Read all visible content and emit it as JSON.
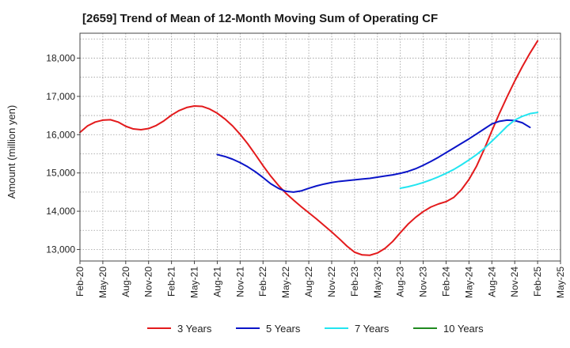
{
  "chart_data": {
    "type": "line",
    "title": "[2659]  Trend of Mean of 12-Month Moving Sum of Operating CF",
    "xlabel": "",
    "ylabel": "Amount (million yen)",
    "ylim": [
      12700,
      18650
    ],
    "yticks": [
      13000,
      14000,
      15000,
      16000,
      17000,
      18000
    ],
    "ytick_labels": [
      "13,000",
      "14,000",
      "15,000",
      "16,000",
      "17,000",
      "18,000"
    ],
    "xtick_labels": [
      "Feb-20",
      "May-20",
      "Aug-20",
      "Nov-20",
      "Feb-21",
      "May-21",
      "Aug-21",
      "Nov-21",
      "Feb-22",
      "May-22",
      "Aug-22",
      "Nov-22",
      "Feb-23",
      "May-23",
      "Aug-23",
      "Nov-23",
      "Feb-24",
      "May-24",
      "Aug-24",
      "Nov-24",
      "Feb-25",
      "May-25"
    ],
    "x_unit": "months since Feb-20",
    "x_range": [
      0,
      63
    ],
    "grid": true,
    "legend_position": "bottom",
    "series": [
      {
        "name": "3 Years",
        "color": "#e31a1c",
        "x": [
          0,
          1,
          2,
          3,
          4,
          5,
          6,
          7,
          8,
          9,
          10,
          11,
          12,
          13,
          14,
          15,
          16,
          17,
          18,
          19,
          20,
          21,
          22,
          23,
          24,
          25,
          26,
          27,
          28,
          29,
          30,
          31,
          32,
          33,
          34,
          35,
          36,
          37,
          38,
          39,
          40,
          41,
          42,
          43,
          44,
          45,
          46,
          47,
          48,
          49,
          50,
          51,
          52,
          53,
          54,
          55,
          56,
          57,
          58,
          59,
          60,
          61,
          62,
          63
        ],
        "values": [
          16060,
          16230,
          16330,
          16380,
          16390,
          16330,
          16220,
          16150,
          16130,
          16160,
          16240,
          16360,
          16510,
          16630,
          16710,
          16750,
          16740,
          16670,
          16560,
          16410,
          16230,
          16010,
          15760,
          15480,
          15190,
          14920,
          14680,
          14470,
          14290,
          14120,
          13960,
          13800,
          13630,
          13460,
          13280,
          13090,
          12930,
          12860,
          12850,
          12910,
          13030,
          13210,
          13440,
          13660,
          13840,
          13990,
          14110,
          14190,
          14250,
          14360,
          14560,
          14830,
          15180,
          15620,
          16100,
          16560,
          16990,
          17400,
          17780,
          18130,
          18450,
          null,
          null,
          null
        ]
      },
      {
        "name": "5 Years",
        "color": "#0a14c8",
        "x": [
          0,
          1,
          2,
          3,
          4,
          5,
          6,
          7,
          8,
          9,
          10,
          11,
          12,
          13,
          14,
          15,
          16,
          17,
          18,
          19,
          20,
          21,
          22,
          23,
          24,
          25,
          26,
          27,
          28,
          29,
          30,
          31,
          32,
          33,
          34,
          35,
          36,
          37,
          38,
          39,
          40,
          41,
          42,
          43,
          44,
          45,
          46,
          47,
          48,
          49,
          50,
          51,
          52,
          53,
          54,
          55,
          56,
          57,
          58,
          59,
          60,
          61,
          62,
          63
        ],
        "values": [
          null,
          null,
          null,
          null,
          null,
          null,
          null,
          null,
          null,
          null,
          null,
          null,
          null,
          null,
          null,
          null,
          null,
          null,
          15480,
          15430,
          15360,
          15270,
          15160,
          15030,
          14880,
          14720,
          14600,
          14520,
          14500,
          14530,
          14600,
          14660,
          14710,
          14750,
          14780,
          14800,
          14820,
          14840,
          14860,
          14890,
          14920,
          14950,
          14990,
          15040,
          15110,
          15200,
          15300,
          15410,
          15530,
          15650,
          15770,
          15890,
          16020,
          16150,
          16280,
          16350,
          16380,
          16370,
          16310,
          16190,
          null,
          null,
          null,
          null
        ]
      },
      {
        "name": "7 Years",
        "color": "#22e5f0",
        "x": [
          0,
          1,
          2,
          3,
          4,
          5,
          6,
          7,
          8,
          9,
          10,
          11,
          12,
          13,
          14,
          15,
          16,
          17,
          18,
          19,
          20,
          21,
          22,
          23,
          24,
          25,
          26,
          27,
          28,
          29,
          30,
          31,
          32,
          33,
          34,
          35,
          36,
          37,
          38,
          39,
          40,
          41,
          42,
          43,
          44,
          45,
          46,
          47,
          48,
          49,
          50,
          51,
          52,
          53,
          54,
          55,
          56,
          57,
          58,
          59,
          60,
          61,
          62,
          63
        ],
        "values": [
          null,
          null,
          null,
          null,
          null,
          null,
          null,
          null,
          null,
          null,
          null,
          null,
          null,
          null,
          null,
          null,
          null,
          null,
          null,
          null,
          null,
          null,
          null,
          null,
          null,
          null,
          null,
          null,
          null,
          null,
          null,
          null,
          null,
          null,
          null,
          null,
          null,
          null,
          null,
          null,
          null,
          null,
          14600,
          14640,
          14690,
          14750,
          14820,
          14900,
          14990,
          15090,
          15210,
          15340,
          15480,
          15640,
          15830,
          16020,
          16220,
          16380,
          16480,
          16550,
          16580,
          null,
          null,
          null
        ]
      },
      {
        "name": "10 Years",
        "color": "#1f8a1f",
        "x": [],
        "values": []
      }
    ]
  }
}
